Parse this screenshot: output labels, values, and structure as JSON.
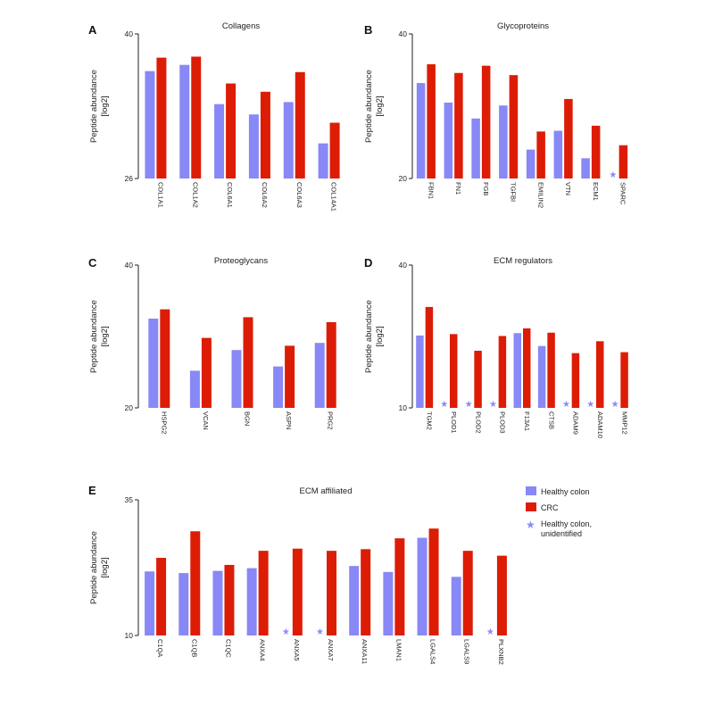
{
  "colors": {
    "healthy": "#8888f6",
    "crc": "#dd1c05",
    "star": "#8a8af7"
  },
  "legend": {
    "healthy_label": "Healthy colon",
    "crc_label": "CRC",
    "unidentified_label_line1": "Healthy colon,",
    "unidentified_label_line2": "unidentified"
  },
  "chart_data": [
    {
      "panel": "A",
      "type": "bar",
      "title": "Collagens",
      "ylabel_line1": "Peptide abundance",
      "ylabel_line2": "[log2]",
      "ylim": [
        26,
        40
      ],
      "yticks": [
        "40",
        "26"
      ],
      "categories": [
        "COL1A1",
        "COL1A2",
        "COL6A1",
        "COL6A2",
        "COL6A3",
        "COL14A1"
      ],
      "series": [
        {
          "name": "Healthy colon",
          "values": [
            36.4,
            37.0,
            33.2,
            32.2,
            33.4,
            29.4
          ],
          "unidentified": [
            false,
            false,
            false,
            false,
            false,
            false
          ]
        },
        {
          "name": "CRC",
          "values": [
            37.7,
            37.8,
            35.2,
            34.4,
            36.3,
            31.4
          ]
        }
      ]
    },
    {
      "panel": "B",
      "type": "bar",
      "title": "Glycoproteins",
      "ylabel_line1": "Peptide abundance",
      "ylabel_line2": "[log2]",
      "ylim": [
        20,
        40
      ],
      "yticks": [
        "40",
        "20"
      ],
      "categories": [
        "FBN1",
        "FN1",
        "FGB",
        "TGFBI",
        "EMILIN2",
        "VTN",
        "ECM1",
        "SPARC"
      ],
      "series": [
        {
          "name": "Healthy colon",
          "values": [
            33.2,
            30.5,
            28.3,
            30.1,
            24.0,
            26.6,
            22.8,
            null
          ],
          "unidentified": [
            false,
            false,
            false,
            false,
            false,
            false,
            false,
            true
          ]
        },
        {
          "name": "CRC",
          "values": [
            35.8,
            34.6,
            35.6,
            34.3,
            26.5,
            31.0,
            27.3,
            24.6
          ]
        }
      ]
    },
    {
      "panel": "C",
      "type": "bar",
      "title": "Proteoglycans",
      "ylabel_line1": "Peptide abundance",
      "ylabel_line2": "[log2]",
      "ylim": [
        20,
        40
      ],
      "yticks": [
        "40",
        "20"
      ],
      "categories": [
        "HSPG2",
        "VCAN",
        "BGN",
        "ASPN",
        "PRG2"
      ],
      "series": [
        {
          "name": "Healthy colon",
          "values": [
            32.5,
            25.2,
            28.1,
            25.8,
            29.1
          ],
          "unidentified": [
            false,
            false,
            false,
            false,
            false
          ]
        },
        {
          "name": "CRC",
          "values": [
            33.8,
            29.8,
            32.7,
            28.7,
            32.0
          ]
        }
      ]
    },
    {
      "panel": "D",
      "type": "bar",
      "title": "ECM regulators",
      "ylabel_line1": "Peptide abundance",
      "ylabel_line2": "[log2]",
      "ylim": [
        10,
        40
      ],
      "yticks": [
        "40",
        "10"
      ],
      "categories": [
        "TGM2",
        "PLOD1",
        "PLOD2",
        "PLOD3",
        "F13A1",
        "CTSB",
        "ADAM9",
        "ADAM10",
        "MMP12"
      ],
      "series": [
        {
          "name": "Healthy colon",
          "values": [
            25.2,
            null,
            null,
            null,
            25.7,
            23.0,
            null,
            null,
            null
          ],
          "unidentified": [
            false,
            true,
            true,
            true,
            false,
            false,
            true,
            true,
            true
          ]
        },
        {
          "name": "CRC",
          "values": [
            31.2,
            25.5,
            22.0,
            25.1,
            26.7,
            25.8,
            21.5,
            24.0,
            21.7
          ]
        }
      ]
    },
    {
      "panel": "E",
      "type": "bar",
      "title": "ECM affiliated",
      "ylabel_line1": "Peptide abundance",
      "ylabel_line2": "[log2]",
      "ylim": [
        10,
        35
      ],
      "yticks": [
        "35",
        "10"
      ],
      "categories": [
        "C1QA",
        "C1QB",
        "C1QC",
        "ANXA4",
        "ANXA5",
        "ANXA7",
        "ANXA11",
        "LMAN1",
        "LGALS4",
        "LGALS9",
        "PLXNB2"
      ],
      "series": [
        {
          "name": "Healthy colon",
          "values": [
            21.8,
            21.5,
            21.9,
            22.4,
            null,
            null,
            22.8,
            21.7,
            28.0,
            20.8,
            null
          ],
          "unidentified": [
            false,
            false,
            false,
            false,
            true,
            true,
            false,
            false,
            false,
            false,
            true
          ]
        },
        {
          "name": "CRC",
          "values": [
            24.3,
            29.2,
            23.0,
            25.6,
            26.0,
            25.6,
            25.9,
            27.9,
            29.7,
            25.6,
            24.7
          ]
        }
      ]
    }
  ]
}
